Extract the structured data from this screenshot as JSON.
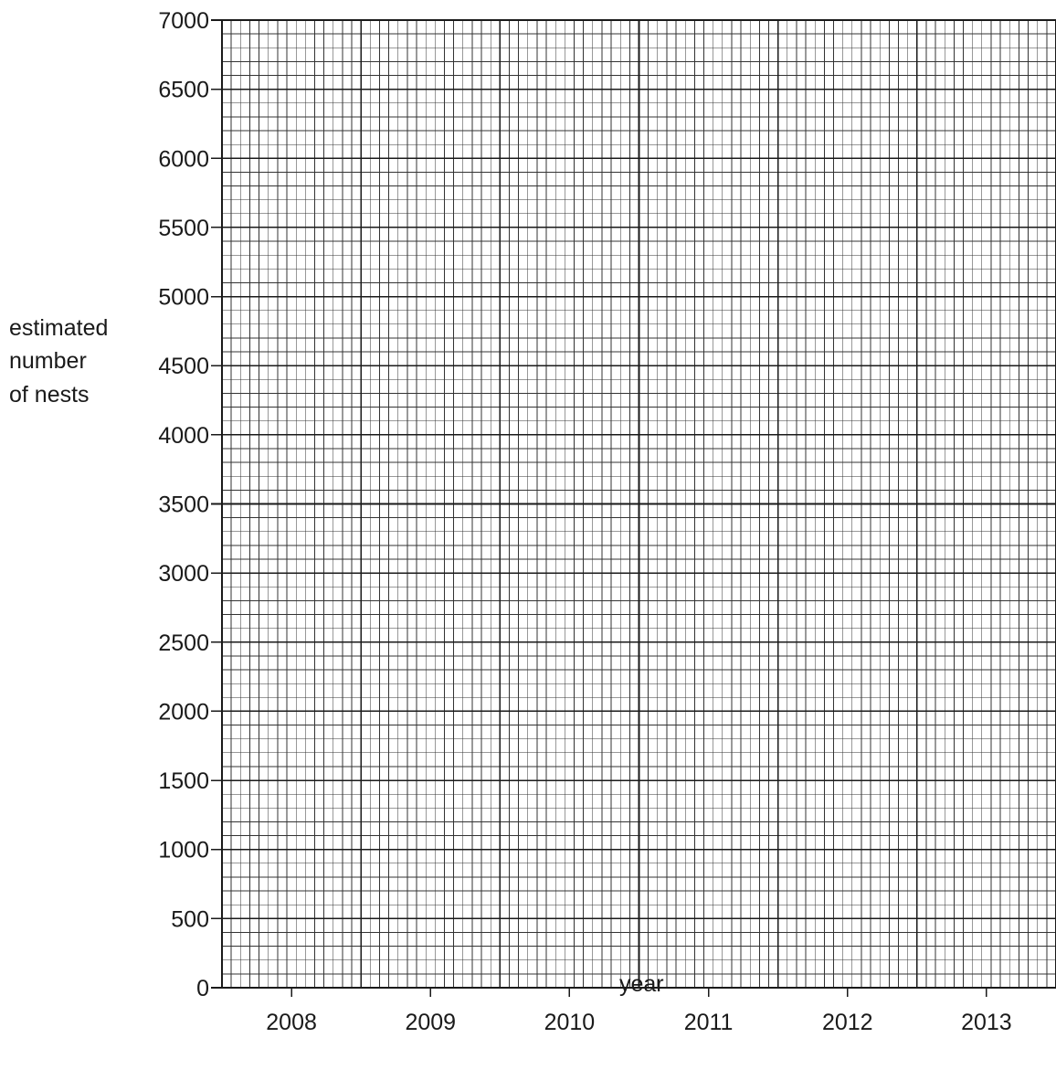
{
  "chart_data": {
    "type": "bar",
    "title": "",
    "xlabel": "year",
    "ylabel_lines": [
      "estimated",
      "number",
      "of nests"
    ],
    "categories": [
      "2008",
      "2009",
      "2010",
      "2011",
      "2012",
      "2013"
    ],
    "series": [],
    "ylim": [
      0,
      7000
    ],
    "y_ticks": [
      0,
      500,
      1000,
      1500,
      2000,
      2500,
      3000,
      3500,
      4000,
      4500,
      5000,
      5500,
      6000,
      6500,
      7000
    ],
    "grid": true,
    "grid_style": "graph paper",
    "colors": {
      "major_grid": "#1a1a1a",
      "minor_grid": "#333333",
      "text": "#1a1a1a"
    }
  }
}
